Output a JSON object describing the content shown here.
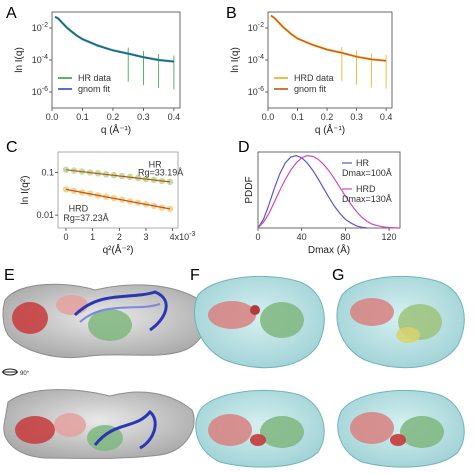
{
  "panels": {
    "A": "A",
    "B": "B",
    "C": "C",
    "D": "D",
    "E": "E",
    "F": "F",
    "G": "G"
  },
  "rotation_label": "90°",
  "chart_data": [
    {
      "id": "A",
      "type": "line",
      "x_scale": "linear",
      "y_scale": "log",
      "xlabel": "q (Å⁻¹)",
      "ylabel": "ln I(q)",
      "xlim": [
        0,
        0.42
      ],
      "ylim_exp": [
        -7,
        -1
      ],
      "xticks": [
        0.0,
        0.1,
        0.2,
        0.3,
        0.4
      ],
      "xtick_labels": [
        "0.0",
        "0.1",
        "0.2",
        "0.3",
        "0.4"
      ],
      "yticks": [
        0.01,
        0.0001,
        1e-06
      ],
      "ytick_labels": [
        "10-2",
        "10-4",
        "10-6"
      ],
      "colors": {
        "data": "#2ea043",
        "fit": "#1f4fd1"
      },
      "series": [
        {
          "name": "HR data",
          "x": [
            0.01,
            0.02,
            0.03,
            0.05,
            0.08,
            0.1,
            0.15,
            0.2,
            0.25,
            0.3,
            0.35,
            0.4
          ],
          "y": [
            0.05,
            0.04,
            0.025,
            0.01,
            0.0035,
            0.002,
            0.0008,
            0.0004,
            0.00025,
            0.00015,
            0.0001,
            8e-05
          ]
        },
        {
          "name": "gnom fit",
          "x": [
            0.01,
            0.02,
            0.03,
            0.05,
            0.08,
            0.1,
            0.15,
            0.2,
            0.25,
            0.3,
            0.35,
            0.4
          ],
          "y": [
            0.05,
            0.04,
            0.025,
            0.01,
            0.0035,
            0.002,
            0.0008,
            0.0004,
            0.00025,
            0.00015,
            0.0001,
            8e-05
          ]
        }
      ]
    },
    {
      "id": "B",
      "type": "line",
      "x_scale": "linear",
      "y_scale": "log",
      "xlabel": "q (Å⁻¹)",
      "ylabel": "ln I(q)",
      "xlim": [
        0,
        0.42
      ],
      "ylim_exp": [
        -7,
        -1
      ],
      "xticks": [
        0.0,
        0.1,
        0.2,
        0.3,
        0.4
      ],
      "xtick_labels": [
        "0.0",
        "0.1",
        "0.2",
        "0.3",
        "0.4"
      ],
      "yticks": [
        0.01,
        0.0001,
        1e-06
      ],
      "ytick_labels": [
        "10-2",
        "10-4",
        "10-6"
      ],
      "colors": {
        "data": "#f2a91c",
        "fit": "#c8531a"
      },
      "series": [
        {
          "name": "HRD data",
          "x": [
            0.01,
            0.02,
            0.03,
            0.05,
            0.08,
            0.1,
            0.15,
            0.2,
            0.25,
            0.3,
            0.35,
            0.4
          ],
          "y": [
            0.06,
            0.045,
            0.03,
            0.012,
            0.004,
            0.0022,
            0.0009,
            0.00045,
            0.00028,
            0.00016,
            0.00011,
            9e-05
          ]
        },
        {
          "name": "gnom fit",
          "x": [
            0.01,
            0.02,
            0.03,
            0.05,
            0.08,
            0.1,
            0.15,
            0.2,
            0.25,
            0.3,
            0.35,
            0.4
          ],
          "y": [
            0.06,
            0.045,
            0.03,
            0.012,
            0.004,
            0.0022,
            0.0009,
            0.00045,
            0.00028,
            0.00016,
            0.00011,
            9e-05
          ]
        }
      ]
    },
    {
      "id": "C",
      "type": "scatter",
      "x_scale": "linear",
      "y_scale": "log",
      "xlabel": "q²(Å⁻²)",
      "ylabel": "ln I(q²)",
      "xlim": [
        -0.3,
        4.2
      ],
      "ylim": [
        0.005,
        0.3
      ],
      "xticks": [
        0,
        1,
        2,
        3,
        4
      ],
      "xtick_labels": [
        "0",
        "1",
        "2",
        "3",
        "4x10-3"
      ],
      "yticks": [
        0.1,
        0.01
      ],
      "ytick_labels": [
        "0.1",
        "0.01"
      ],
      "annotations": [
        {
          "text": "HR",
          "x": 3.1,
          "y": 0.13
        },
        {
          "text": "Rg=33.19Å",
          "x": 2.7,
          "y": 0.085
        },
        {
          "text": "HRD",
          "x": 0.1,
          "y": 0.012
        },
        {
          "text": "Rg=37.23Å",
          "x": -0.1,
          "y": 0.0072
        }
      ],
      "series": [
        {
          "name": "HR",
          "color": "#9bd37a",
          "fit_color": "#c8531a",
          "x": [
            0.0,
            0.3,
            0.6,
            0.9,
            1.2,
            1.5,
            1.8,
            2.1,
            2.4,
            2.7,
            3.0,
            3.3,
            3.6,
            3.9
          ],
          "y": [
            0.115,
            0.11,
            0.105,
            0.1,
            0.095,
            0.09,
            0.086,
            0.082,
            0.078,
            0.074,
            0.07,
            0.067,
            0.063,
            0.06
          ]
        },
        {
          "name": "HRD",
          "color": "#f2c25a",
          "fit_color": "#c8531a",
          "x": [
            0.0,
            0.3,
            0.6,
            0.9,
            1.2,
            1.5,
            1.8,
            2.1,
            2.4,
            2.7,
            3.0,
            3.3,
            3.6,
            3.9
          ],
          "y": [
            0.04,
            0.037,
            0.034,
            0.032,
            0.029,
            0.027,
            0.025,
            0.023,
            0.021,
            0.0195,
            0.018,
            0.0165,
            0.015,
            0.014
          ]
        }
      ]
    },
    {
      "id": "D",
      "type": "line",
      "xlabel": "Dmax (Å)",
      "ylabel": "PDDF",
      "xlim": [
        0,
        130
      ],
      "ylim": [
        0,
        1.05
      ],
      "xticks": [
        0,
        40,
        80,
        120
      ],
      "xtick_labels": [
        "0",
        "40",
        "80",
        "120"
      ],
      "series": [
        {
          "name": "HR",
          "sublabel": "Dmax=100Å",
          "color": "#5b55d6",
          "x": [
            0,
            5,
            10,
            15,
            20,
            25,
            30,
            35,
            40,
            45,
            50,
            55,
            60,
            65,
            70,
            75,
            80,
            85,
            90,
            95,
            100
          ],
          "y": [
            0,
            0.12,
            0.32,
            0.55,
            0.75,
            0.9,
            0.98,
            1.0,
            0.97,
            0.9,
            0.8,
            0.68,
            0.55,
            0.42,
            0.3,
            0.2,
            0.12,
            0.07,
            0.03,
            0.01,
            0
          ]
        },
        {
          "name": "HRD",
          "sublabel": "Dmax=130Å",
          "color": "#d44ab8",
          "x": [
            0,
            5,
            10,
            15,
            20,
            25,
            30,
            35,
            40,
            45,
            50,
            55,
            60,
            65,
            70,
            75,
            80,
            85,
            90,
            95,
            100,
            105,
            110,
            115,
            120,
            125,
            130
          ],
          "y": [
            0,
            0.08,
            0.2,
            0.36,
            0.52,
            0.67,
            0.8,
            0.9,
            0.97,
            1.0,
            0.99,
            0.95,
            0.88,
            0.79,
            0.68,
            0.56,
            0.44,
            0.33,
            0.23,
            0.15,
            0.09,
            0.05,
            0.03,
            0.015,
            0.007,
            0.003,
            0
          ]
        }
      ]
    }
  ]
}
